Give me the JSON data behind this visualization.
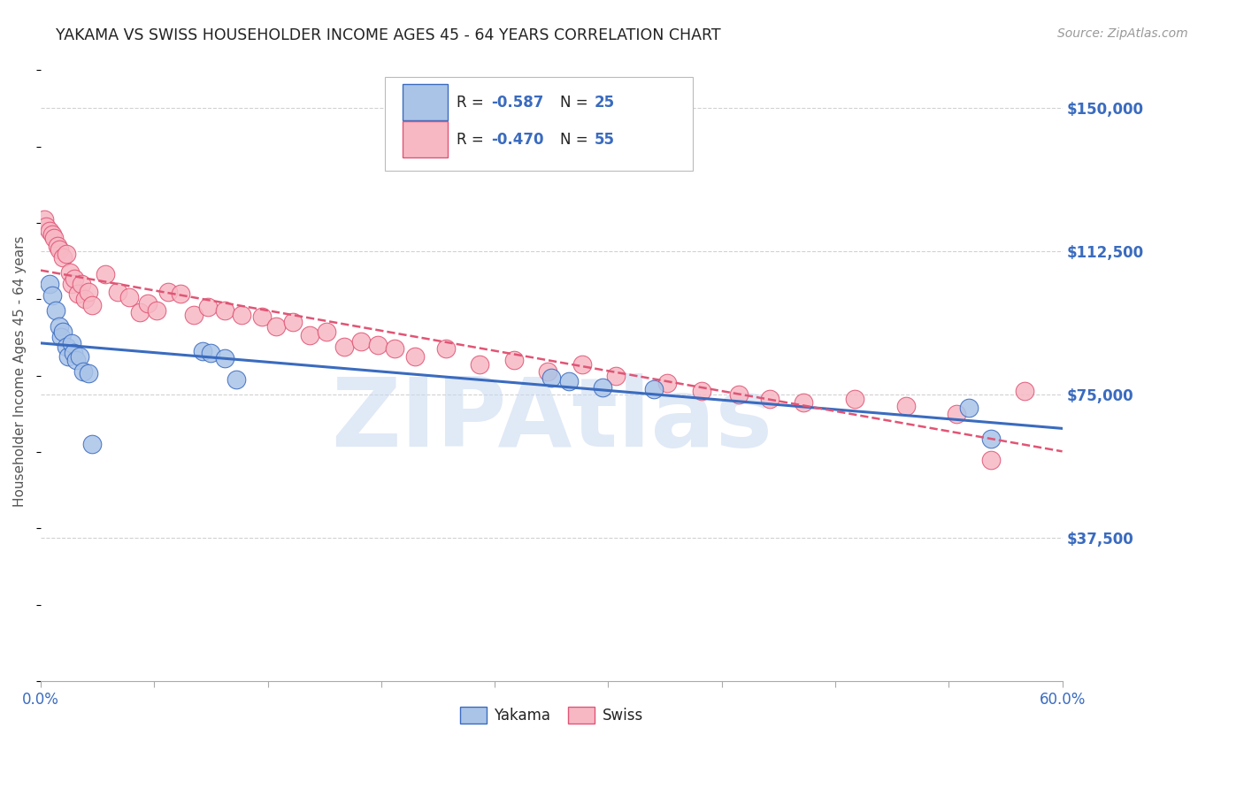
{
  "title": "YAKAMA VS SWISS HOUSEHOLDER INCOME AGES 45 - 64 YEARS CORRELATION CHART",
  "source": "Source: ZipAtlas.com",
  "ylabel": "Householder Income Ages 45 - 64 years",
  "ytick_labels": [
    "$37,500",
    "$75,000",
    "$112,500",
    "$150,000"
  ],
  "ytick_values": [
    37500,
    75000,
    112500,
    150000
  ],
  "ymin": 0,
  "ymax": 162500,
  "xmin": 0.0,
  "xmax": 0.6,
  "legend_r_yakama_val": "-0.587",
  "legend_n_yakama_val": "25",
  "legend_r_swiss_val": "-0.470",
  "legend_n_swiss_val": "55",
  "yakama_color": "#aac4e8",
  "swiss_color": "#f7b8c4",
  "yakama_line_color": "#3a6bbf",
  "swiss_line_color": "#e05575",
  "background_color": "#ffffff",
  "grid_color": "#cccccc",
  "title_color": "#222222",
  "axis_label_color": "#555555",
  "ytick_color": "#3a6bbf",
  "source_color": "#999999",
  "watermark_text": "ZIPAtlas",
  "watermark_color": "#c8d8f0",
  "legend_text_color": "#222222",
  "legend_val_color": "#3a6bbf",
  "yakama_x": [
    0.005,
    0.007,
    0.009,
    0.011,
    0.012,
    0.013,
    0.015,
    0.016,
    0.018,
    0.019,
    0.021,
    0.023,
    0.025,
    0.028,
    0.03,
    0.095,
    0.1,
    0.108,
    0.115,
    0.3,
    0.31,
    0.33,
    0.36,
    0.545,
    0.558
  ],
  "yakama_y": [
    104000,
    101000,
    97000,
    93000,
    90000,
    91500,
    87500,
    85000,
    88500,
    86000,
    84000,
    85000,
    81000,
    80500,
    62000,
    86500,
    86000,
    84500,
    79000,
    79500,
    78500,
    77000,
    76500,
    71500,
    63500
  ],
  "swiss_x": [
    0.002,
    0.003,
    0.005,
    0.007,
    0.008,
    0.01,
    0.011,
    0.013,
    0.015,
    0.017,
    0.018,
    0.02,
    0.022,
    0.024,
    0.026,
    0.028,
    0.03,
    0.038,
    0.045,
    0.052,
    0.058,
    0.063,
    0.068,
    0.075,
    0.082,
    0.09,
    0.098,
    0.108,
    0.118,
    0.13,
    0.138,
    0.148,
    0.158,
    0.168,
    0.178,
    0.188,
    0.198,
    0.208,
    0.22,
    0.238,
    0.258,
    0.278,
    0.298,
    0.318,
    0.338,
    0.368,
    0.388,
    0.41,
    0.428,
    0.448,
    0.478,
    0.508,
    0.538,
    0.558,
    0.578
  ],
  "swiss_y": [
    121000,
    119000,
    118000,
    117000,
    116000,
    114000,
    113000,
    111000,
    112000,
    107000,
    104000,
    105500,
    101500,
    104000,
    100000,
    102000,
    98500,
    106500,
    102000,
    100500,
    96500,
    99000,
    97000,
    102000,
    101500,
    96000,
    98000,
    97000,
    96000,
    95500,
    93000,
    94000,
    90500,
    91500,
    87500,
    89000,
    88000,
    87000,
    85000,
    87000,
    83000,
    84000,
    81000,
    83000,
    80000,
    78000,
    76000,
    75000,
    74000,
    73000,
    74000,
    72000,
    70000,
    58000,
    76000
  ]
}
